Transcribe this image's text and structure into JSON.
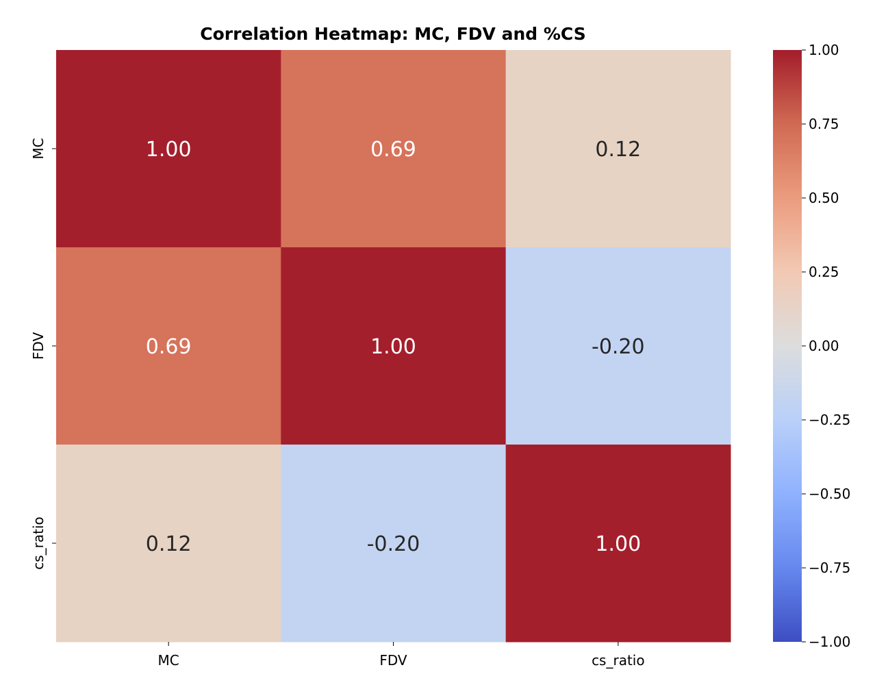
{
  "chart_data": {
    "type": "heatmap",
    "title": "Correlation Heatmap: MC, FDV and %CS",
    "x_labels": [
      "MC",
      "FDV",
      "cs_ratio"
    ],
    "y_labels": [
      "MC",
      "FDV",
      "cs_ratio"
    ],
    "values": [
      [
        1.0,
        0.69,
        0.12
      ],
      [
        0.69,
        1.0,
        -0.2
      ],
      [
        0.12,
        -0.2,
        1.0
      ]
    ],
    "annotations": [
      [
        "1.00",
        "0.69",
        "0.12"
      ],
      [
        "0.69",
        "1.00",
        "-0.20"
      ],
      [
        "0.12",
        "-0.20",
        "1.00"
      ]
    ],
    "colormap": "coolwarm",
    "vmin": -1,
    "vmax": 1,
    "colorbar_ticks": [
      "1.00",
      "0.75",
      "0.50",
      "0.25",
      "0.00",
      "−0.25",
      "−0.50",
      "−0.75",
      "−1.00"
    ],
    "colorbar_tick_values": [
      1,
      0.75,
      0.5,
      0.25,
      0,
      -0.25,
      -0.5,
      -0.75,
      -1
    ],
    "colormap_stops": [
      {
        "v": -1,
        "c": "#3d4ec2"
      },
      {
        "v": -0.75,
        "c": "#6688ee"
      },
      {
        "v": -0.5,
        "c": "#8fb1fe"
      },
      {
        "v": -0.25,
        "c": "#b9d0f9"
      },
      {
        "v": 0,
        "c": "#dcdddd"
      },
      {
        "v": 0.25,
        "c": "#f2c9b4"
      },
      {
        "v": 0.5,
        "c": "#eb9c7e"
      },
      {
        "v": 0.75,
        "c": "#d06a53"
      },
      {
        "v": 1,
        "c": "#a31d2b"
      }
    ],
    "cell_colors": [
      [
        "#a41f2c",
        "#d6735b",
        "#e7d3c4"
      ],
      [
        "#d6735b",
        "#a41f2c",
        "#c3d4f2"
      ],
      [
        "#e7d3c4",
        "#c3d4f2",
        "#a41f2c"
      ]
    ],
    "annotation_colors": [
      [
        "#ffffff",
        "#ffffff",
        "#262626"
      ],
      [
        "#ffffff",
        "#ffffff",
        "#262626"
      ],
      [
        "#262626",
        "#262626",
        "#ffffff"
      ]
    ]
  }
}
